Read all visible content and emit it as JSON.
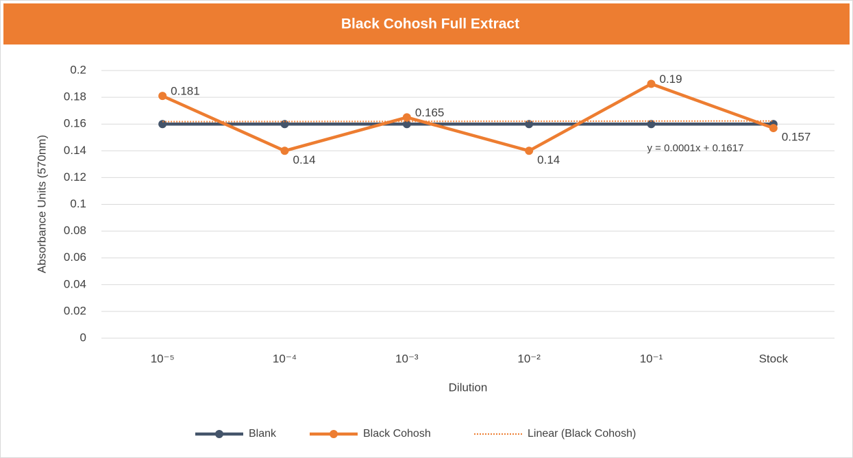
{
  "chart_data": {
    "type": "line",
    "title": "Black Cohosh Full Extract",
    "x_label": "Dilution",
    "y_label": "Absorbance Units (570nm)",
    "categories": [
      "10⁻⁵",
      "10⁻⁴",
      "10⁻³",
      "10⁻²",
      "10⁻¹",
      "Stock"
    ],
    "series": [
      {
        "name": "Blank",
        "color": "#44546a",
        "values": [
          0.16,
          0.16,
          0.16,
          0.16,
          0.16,
          0.16
        ]
      },
      {
        "name": "Black Cohosh",
        "color": "#ed7d31",
        "values": [
          0.181,
          0.14,
          0.165,
          0.14,
          0.19,
          0.157
        ],
        "data_labels": true
      }
    ],
    "trendline": {
      "name": "Linear (Black Cohosh)",
      "color": "#ed7d31",
      "equation": "y = 0.0001x + 0.1617",
      "slope": 0.0001,
      "intercept": 0.1617
    },
    "ylim": [
      0,
      0.2
    ],
    "yticks": [
      0,
      0.02,
      0.04,
      0.06,
      0.08,
      0.1,
      0.12,
      0.14,
      0.16,
      0.18,
      0.2
    ],
    "grid": true,
    "legend": "bottom"
  }
}
